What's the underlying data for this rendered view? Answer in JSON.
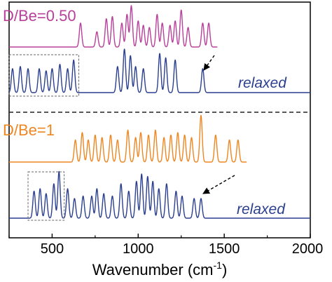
{
  "chart_data": {
    "type": "line",
    "xlabel": "Wavenumber (cm",
    "xlabel_sup": "-1",
    "xlabel_close": ")",
    "xlim": [
      250,
      2000
    ],
    "x_ticks": [
      500,
      1000,
      1500,
      2000
    ],
    "grid": false,
    "divider": "dashed",
    "colors": {
      "magenta": "#b8409a",
      "blue": "#2b3f8f",
      "orange": "#ee8622",
      "axis": "#000000",
      "box": "#666666"
    },
    "series": [
      {
        "label": "D/Be=0.50",
        "color": "magenta",
        "x_range": [
          250,
          1460
        ],
        "peaks": [
          [
            665,
            0.55
          ],
          [
            760,
            0.35
          ],
          [
            815,
            0.65
          ],
          [
            850,
            0.7
          ],
          [
            905,
            0.55
          ],
          [
            935,
            0.75
          ],
          [
            960,
            0.95
          ],
          [
            1000,
            0.6
          ],
          [
            1030,
            0.5
          ],
          [
            1065,
            0.45
          ],
          [
            1110,
            0.75
          ],
          [
            1140,
            0.55
          ],
          [
            1185,
            0.5
          ],
          [
            1215,
            0.6
          ],
          [
            1250,
            0.85
          ],
          [
            1290,
            0.45
          ],
          [
            1375,
            0.55
          ],
          [
            1410,
            0.55
          ]
        ]
      },
      {
        "annotation": "relaxed",
        "color": "blue",
        "x_range": [
          250,
          2000
        ],
        "peaks": [
          [
            270,
            0.55
          ],
          [
            315,
            0.6
          ],
          [
            360,
            0.55
          ],
          [
            425,
            0.55
          ],
          [
            465,
            0.5
          ],
          [
            500,
            0.55
          ],
          [
            545,
            0.65
          ],
          [
            590,
            0.55
          ],
          [
            625,
            0.75
          ],
          [
            880,
            0.6
          ],
          [
            920,
            1.0
          ],
          [
            955,
            0.85
          ],
          [
            985,
            0.6
          ],
          [
            1030,
            0.55
          ],
          [
            1125,
            0.9
          ],
          [
            1160,
            0.8
          ],
          [
            1215,
            0.75
          ],
          [
            1375,
            0.55
          ]
        ],
        "box_x": [
          250,
          655
        ]
      },
      {
        "label": "D/Be=1",
        "color": "orange",
        "x_range": [
          250,
          1630
        ],
        "peaks": [
          [
            635,
            0.45
          ],
          [
            675,
            0.6
          ],
          [
            710,
            0.45
          ],
          [
            750,
            0.55
          ],
          [
            790,
            0.5
          ],
          [
            840,
            0.55
          ],
          [
            880,
            0.45
          ],
          [
            940,
            0.65
          ],
          [
            985,
            0.5
          ],
          [
            1015,
            0.6
          ],
          [
            1060,
            0.55
          ],
          [
            1100,
            0.65
          ],
          [
            1150,
            0.5
          ],
          [
            1190,
            0.55
          ],
          [
            1230,
            0.6
          ],
          [
            1270,
            0.55
          ],
          [
            1310,
            0.5
          ],
          [
            1365,
            0.95
          ],
          [
            1450,
            0.55
          ],
          [
            1530,
            0.45
          ],
          [
            1580,
            0.45
          ]
        ]
      },
      {
        "annotation": "relaxed",
        "color": "blue",
        "x_range": [
          250,
          2000
        ],
        "peaks": [
          [
            395,
            0.55
          ],
          [
            430,
            0.6
          ],
          [
            465,
            0.5
          ],
          [
            510,
            0.7
          ],
          [
            540,
            0.95
          ],
          [
            590,
            0.6
          ],
          [
            630,
            0.4
          ],
          [
            680,
            0.45
          ],
          [
            730,
            0.45
          ],
          [
            760,
            0.6
          ],
          [
            800,
            0.5
          ],
          [
            850,
            0.45
          ],
          [
            900,
            0.7
          ],
          [
            945,
            0.55
          ],
          [
            990,
            0.75
          ],
          [
            1020,
            0.9
          ],
          [
            1055,
            0.85
          ],
          [
            1085,
            0.75
          ],
          [
            1120,
            0.6
          ],
          [
            1165,
            0.7
          ],
          [
            1220,
            0.55
          ],
          [
            1255,
            0.45
          ],
          [
            1325,
            0.4
          ],
          [
            1365,
            0.4
          ]
        ],
        "box_x": [
          360,
          570
        ]
      }
    ]
  }
}
